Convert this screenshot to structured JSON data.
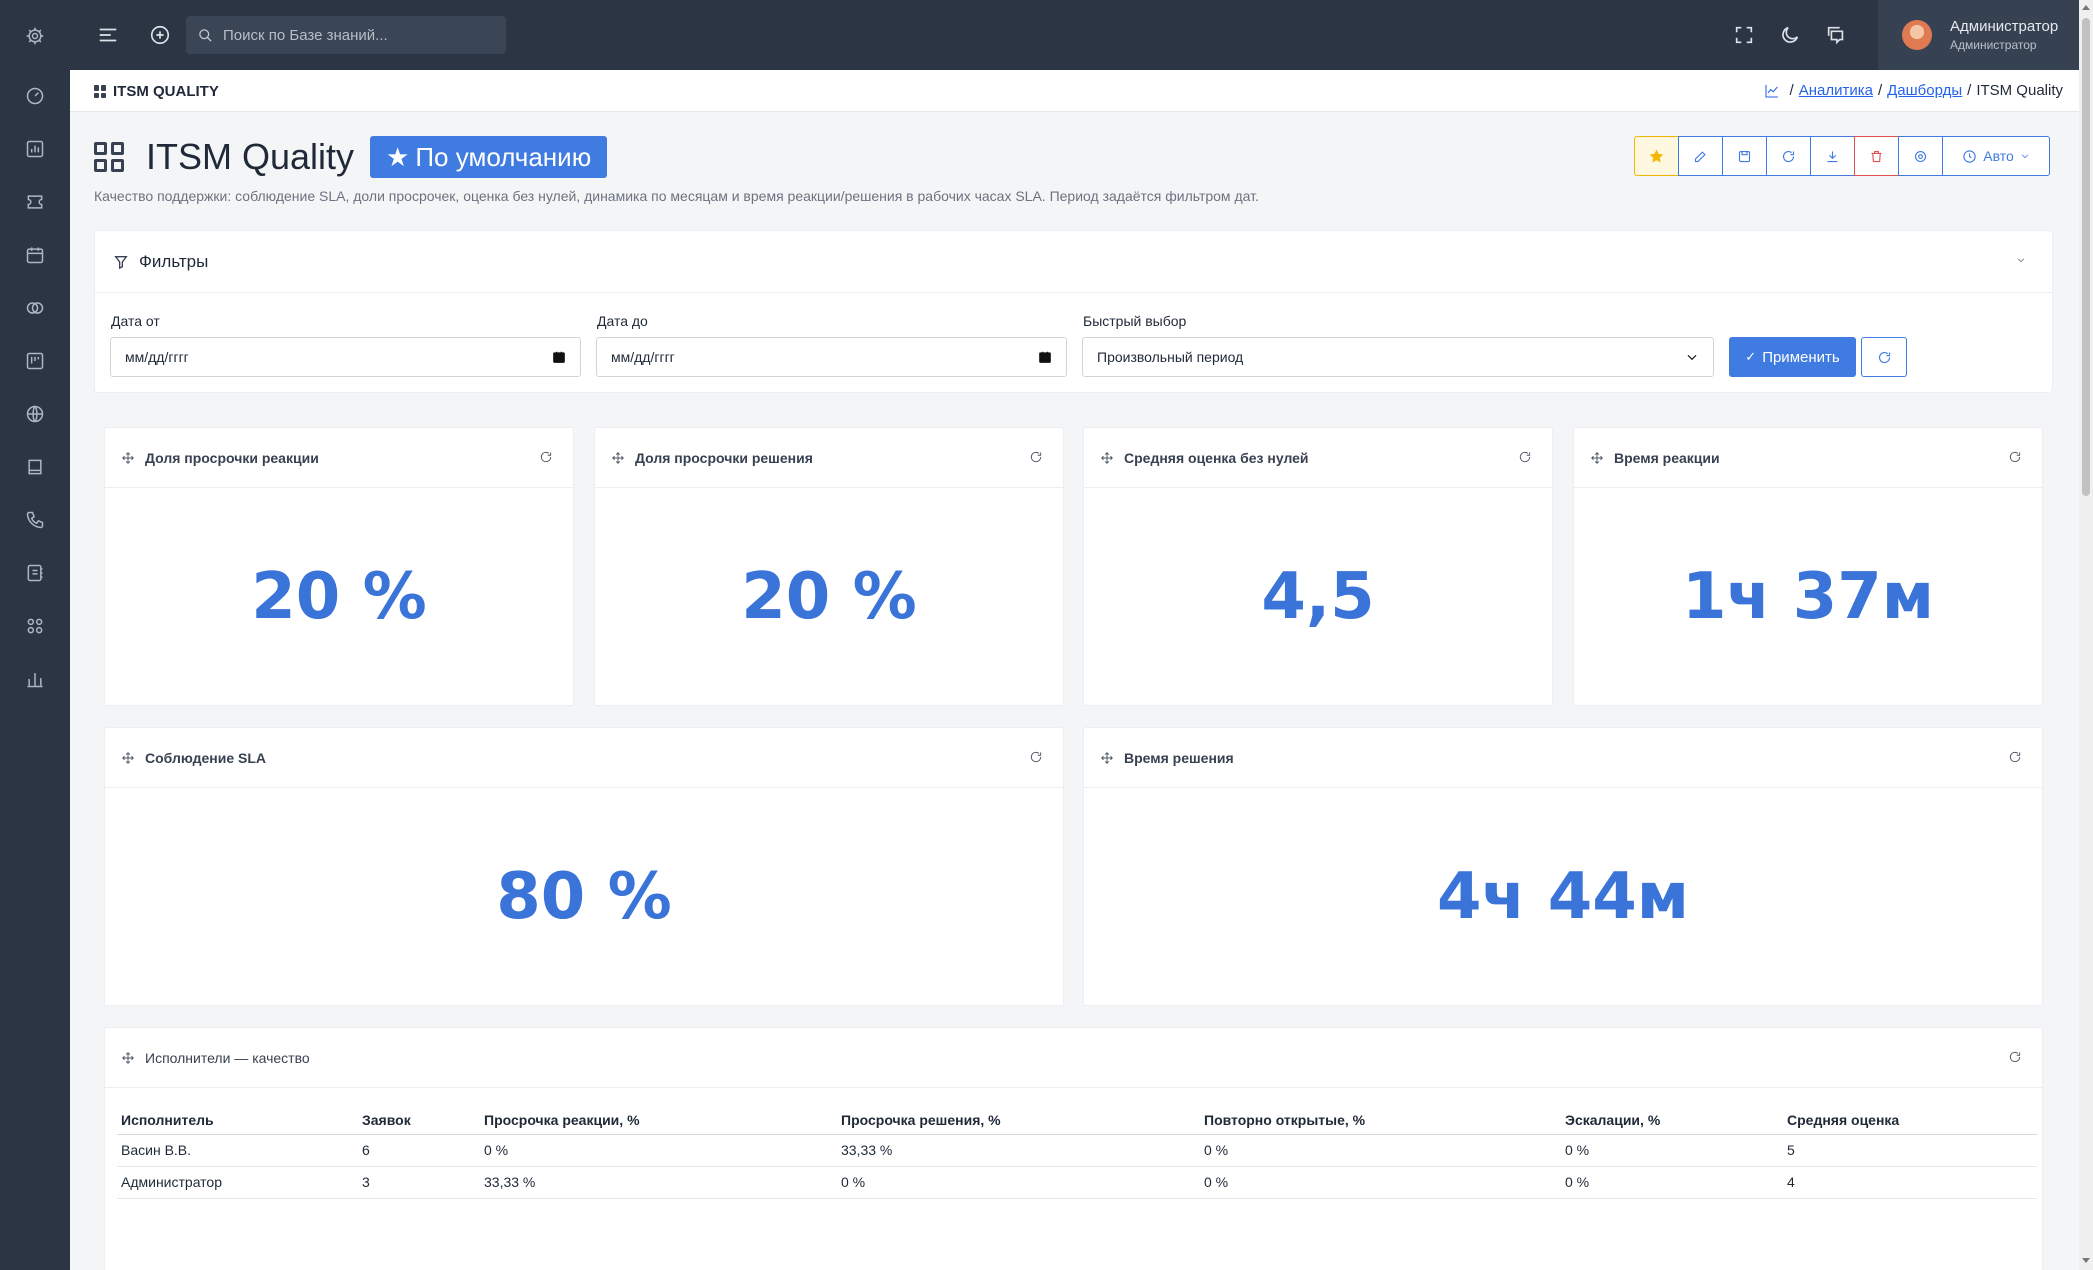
{
  "topbar": {
    "search_placeholder": "Поиск по Базе знаний...",
    "user_name": "Администратор",
    "user_role": "Администратор"
  },
  "breadcrumb": {
    "title": "ITSM QUALITY",
    "items": [
      "Аналитика",
      "Дашборды"
    ],
    "current": "ITSM Quality"
  },
  "header": {
    "title": "ITSM Quality",
    "default_label": "По умолчанию",
    "description": "Качество поддержки: соблюдение SLA, доли просрочек, оценка без нулей, динамика по месяцам и время реакции/решения в рабочих часах SLA. Период задаётся фильтром дат.",
    "auto_label": "Авто"
  },
  "filters": {
    "title": "Фильтры",
    "date_from_label": "Дата от",
    "date_from_value": "мм/дд/гггг",
    "date_to_label": "Дата до",
    "date_to_value": "мм/дд/гггг",
    "quick_label": "Быстрый выбор",
    "quick_value": "Произвольный период",
    "apply_label": "Применить"
  },
  "kpis": [
    {
      "title": "Доля просрочки реакции",
      "value": "20 %"
    },
    {
      "title": "Доля просрочки решения",
      "value": "20 %"
    },
    {
      "title": "Средняя оценка без нулей",
      "value": "4,5"
    },
    {
      "title": "Время реакции",
      "value": "1ч 37м"
    },
    {
      "title": "Соблюдение SLA",
      "value": "80 %"
    },
    {
      "title": "Время решения",
      "value": "4ч 44м"
    }
  ],
  "table": {
    "title": "Исполнители — качество",
    "columns": [
      "Исполнитель",
      "Заявок",
      "Просрочка реакции, %",
      "Просрочка решения, %",
      "Повторно открытые, %",
      "Эскалации, %",
      "Средняя оценка"
    ],
    "rows": [
      [
        "Васин В.В.",
        "6",
        "0 %",
        "33,33 %",
        "0 %",
        "0 %",
        "5"
      ],
      [
        "Администратор",
        "3",
        "33,33 %",
        "0 %",
        "0 %",
        "0 %",
        "4"
      ]
    ]
  },
  "colors": {
    "sidebar": "#2b3544",
    "accent": "#3f7be0",
    "kpi": "#3a74d8"
  }
}
